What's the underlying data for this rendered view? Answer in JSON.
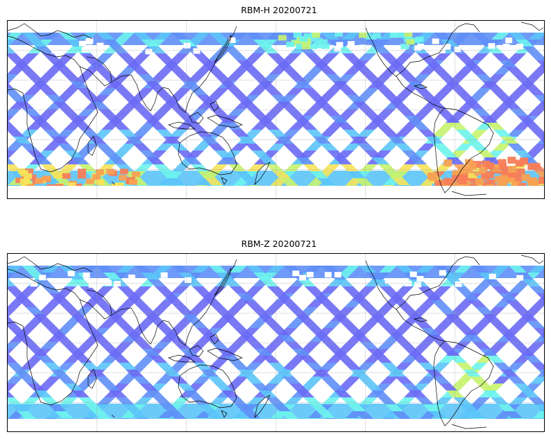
{
  "panels": [
    {
      "id": "rbm-h",
      "title": "RBM-H 20200721",
      "colormap": [
        "#6a6af5",
        "#5f8ff7",
        "#5cc4f8",
        "#6ef3ec",
        "#c7f36e",
        "#f6e35a",
        "#f8a153",
        "#f87d58"
      ],
      "south_ocean_color": "#f87d58"
    },
    {
      "id": "rbm-z",
      "title": "RBM-Z 20200721",
      "colormap": [
        "#6a6af5",
        "#5f8ff7",
        "#5cc4f8",
        "#6ef3ec",
        "#c7f36e",
        "#f6e35a"
      ],
      "south_ocean_color": "#5cc4f8"
    }
  ],
  "map": {
    "projection": "PlateCarree",
    "central_longitude": 180,
    "gridlines": true,
    "coastlines": true,
    "swath_pattern": "crisscross satellite tracks"
  }
}
